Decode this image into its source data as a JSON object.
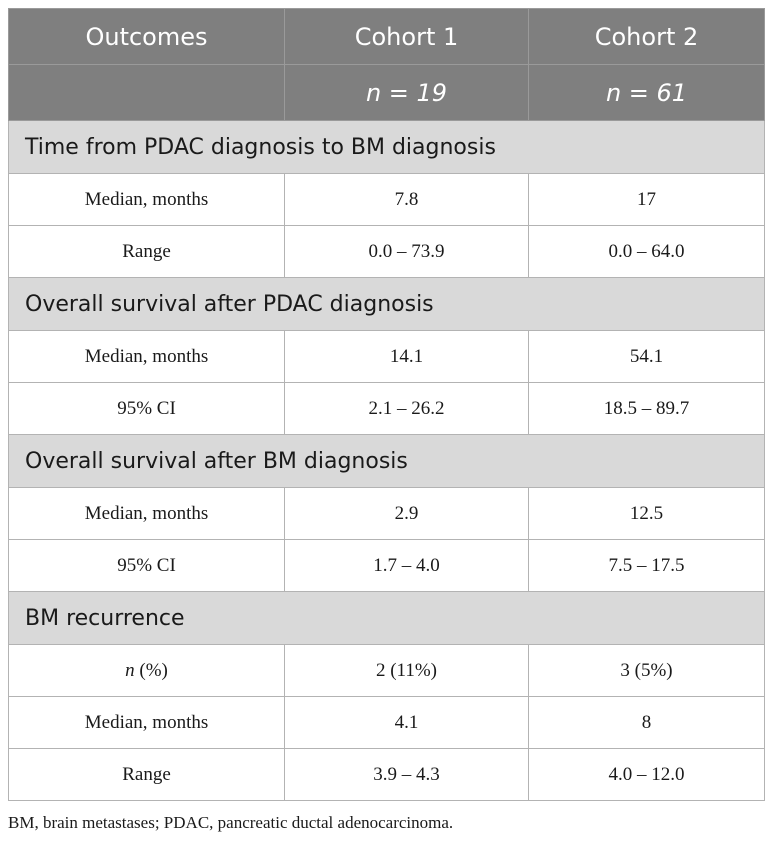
{
  "table": {
    "headers": [
      "Outcomes",
      "Cohort 1",
      "Cohort 2"
    ],
    "n_row": [
      "",
      "n = 19",
      "n = 61"
    ],
    "sections": [
      {
        "title": "Time from PDAC diagnosis to BM diagnosis",
        "rows": [
          {
            "label": "Median, months",
            "c1": "7.8",
            "c2": "17"
          },
          {
            "label": "Range",
            "c1": "0.0 – 73.9",
            "c2": "0.0 – 64.0"
          }
        ]
      },
      {
        "title": "Overall survival after PDAC diagnosis",
        "rows": [
          {
            "label": "Median, months",
            "c1": "14.1",
            "c2": "54.1"
          },
          {
            "label": "95% CI",
            "c1": "2.1 – 26.2",
            "c2": "18.5 – 89.7"
          }
        ]
      },
      {
        "title": "Overall survival after BM diagnosis",
        "rows": [
          {
            "label": "Median, months",
            "c1": "2.9",
            "c2": "12.5"
          },
          {
            "label": "95% CI",
            "c1": "1.7 – 4.0",
            "c2": "7.5 – 17.5"
          }
        ]
      },
      {
        "title": "BM recurrence",
        "rows": [
          {
            "label_italic": "n",
            "label_rest": " (%)",
            "c1": "2 (11%)",
            "c2": "3 (5%)"
          },
          {
            "label": "Median, months",
            "c1": "4.1",
            "c2": "8"
          },
          {
            "label": "Range",
            "c1": "3.9 – 4.3",
            "c2": "4.0 – 12.0"
          }
        ]
      }
    ]
  },
  "footnote": "BM, brain metastases; PDAC, pancreatic ductal adenocarcinoma.",
  "colors": {
    "header_bg": "#7f7f7f",
    "section_bg": "#d9d9d9",
    "border": "#b3b3b3"
  }
}
